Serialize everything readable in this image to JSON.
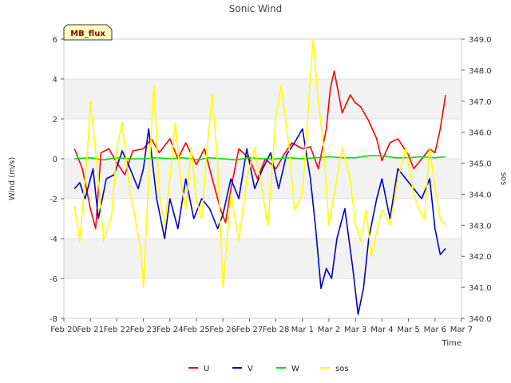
{
  "chart_data": {
    "type": "line",
    "title": "Sonic Wind",
    "badge": "MB_flux",
    "xlabel": "Time",
    "ylabel_left": "Wind (m/s)",
    "ylabel_right": "sos",
    "x_ticks": [
      "Feb 20",
      "Feb 21",
      "Feb 22",
      "Feb 23",
      "Feb 24",
      "Feb 25",
      "Feb 26",
      "Feb 27",
      "Feb 28",
      "Mar 1",
      "Mar 2",
      "Mar 3",
      "Mar 4",
      "Mar 5",
      "Mar 6",
      "Mar 7"
    ],
    "x_domain_days": [
      0,
      15
    ],
    "y_left": {
      "min": -8,
      "max": 6,
      "ticks": [
        -8,
        -6,
        -4,
        -2,
        0,
        2,
        4,
        6
      ]
    },
    "y_right": {
      "min": 340.0,
      "max": 349.0,
      "ticks": [
        "340.0",
        "341.0",
        "342.0",
        "343.0",
        "344.0",
        "345.0",
        "346.0",
        "347.0",
        "348.0",
        "349.0"
      ]
    },
    "bands": [
      [
        2,
        4
      ],
      [
        -2,
        0
      ],
      [
        -6,
        -4
      ]
    ],
    "series": [
      {
        "name": "U",
        "color": "#ff0000",
        "axis": "left",
        "x": [
          0.4,
          0.7,
          1.0,
          1.2,
          1.4,
          1.7,
          2.0,
          2.3,
          2.6,
          3.0,
          3.3,
          3.6,
          4.0,
          4.3,
          4.6,
          5.0,
          5.3,
          5.6,
          5.9,
          6.1,
          6.3,
          6.6,
          7.0,
          7.3,
          7.6,
          8.0,
          8.3,
          8.6,
          9.0,
          9.3,
          9.6,
          9.9,
          10.05,
          10.2,
          10.5,
          10.8,
          11.0,
          11.2,
          11.5,
          11.8,
          12.0,
          12.3,
          12.6,
          13.0,
          13.2,
          13.5,
          13.8,
          14.0,
          14.2,
          14.4
        ],
        "y": [
          0.5,
          -0.5,
          -2.5,
          -3.5,
          0.3,
          0.5,
          -0.2,
          -0.8,
          0.4,
          0.5,
          1.0,
          0.3,
          1.0,
          0.0,
          0.8,
          -0.3,
          0.5,
          -1.0,
          -2.5,
          -3.2,
          -1.5,
          0.5,
          0.0,
          -1.0,
          0.0,
          -0.5,
          0.2,
          0.8,
          0.5,
          0.6,
          -0.5,
          1.5,
          3.5,
          4.4,
          2.3,
          3.2,
          2.8,
          2.6,
          1.9,
          1.0,
          -0.1,
          0.8,
          1.0,
          0.2,
          -0.5,
          0.0,
          0.5,
          0.3,
          1.5,
          3.2
        ]
      },
      {
        "name": "V",
        "color": "#0000cc",
        "axis": "left",
        "x": [
          0.4,
          0.6,
          0.8,
          1.1,
          1.3,
          1.6,
          1.9,
          2.2,
          2.5,
          2.8,
          3.0,
          3.2,
          3.5,
          3.8,
          4.0,
          4.3,
          4.6,
          4.9,
          5.2,
          5.5,
          5.8,
          6.0,
          6.3,
          6.6,
          6.9,
          7.2,
          7.5,
          7.8,
          8.1,
          8.4,
          8.7,
          9.0,
          9.3,
          9.5,
          9.7,
          9.9,
          10.1,
          10.3,
          10.6,
          10.9,
          11.1,
          11.3,
          11.5,
          11.8,
          12.0,
          12.3,
          12.6,
          12.9,
          13.2,
          13.5,
          13.8,
          14.0,
          14.2,
          14.4
        ],
        "y": [
          -1.5,
          -1.2,
          -2.0,
          -0.5,
          -3.0,
          -1.0,
          -0.8,
          0.4,
          -0.5,
          -1.5,
          -0.5,
          1.5,
          -2.0,
          -4.0,
          -2.0,
          -3.5,
          -1.0,
          -3.0,
          -2.0,
          -2.5,
          -3.5,
          -2.8,
          -1.0,
          -2.0,
          0.5,
          -1.5,
          -0.5,
          0.3,
          -1.5,
          0.2,
          0.8,
          1.5,
          -1.0,
          -3.5,
          -6.5,
          -5.5,
          -6.0,
          -4.0,
          -2.5,
          -5.5,
          -7.8,
          -6.5,
          -4.0,
          -2.0,
          -1.0,
          -3.0,
          -0.5,
          -1.0,
          -1.5,
          -2.0,
          -1.0,
          -3.5,
          -4.8,
          -4.5
        ]
      },
      {
        "name": "W",
        "color": "#00dd00",
        "axis": "left",
        "x": [
          0.4,
          1.0,
          1.5,
          2.0,
          2.5,
          3.0,
          3.5,
          4.0,
          4.5,
          5.0,
          5.5,
          6.0,
          6.5,
          7.0,
          7.5,
          8.0,
          8.5,
          9.0,
          9.5,
          10.0,
          10.5,
          11.0,
          11.5,
          12.0,
          12.5,
          13.0,
          13.5,
          14.0,
          14.4
        ],
        "y": [
          0.0,
          0.05,
          -0.05,
          0.05,
          0.0,
          0.0,
          0.05,
          0.0,
          0.05,
          -0.05,
          0.05,
          0.0,
          -0.05,
          0.05,
          0.0,
          0.0,
          0.05,
          0.0,
          0.05,
          0.1,
          0.05,
          0.05,
          0.15,
          0.15,
          0.05,
          0.05,
          0.1,
          0.05,
          0.1
        ]
      },
      {
        "name": "sos",
        "color": "#ffff00",
        "axis": "right",
        "x": [
          0.4,
          0.6,
          0.9,
          1.0,
          1.3,
          1.5,
          1.8,
          2.0,
          2.2,
          2.5,
          2.7,
          2.9,
          3.0,
          3.2,
          3.4,
          3.6,
          3.8,
          4.0,
          4.2,
          4.4,
          4.6,
          4.8,
          5.0,
          5.2,
          5.4,
          5.6,
          5.8,
          6.0,
          6.3,
          6.6,
          6.9,
          7.2,
          7.5,
          7.7,
          8.0,
          8.2,
          8.5,
          8.7,
          9.0,
          9.2,
          9.4,
          9.6,
          9.8,
          10.0,
          10.2,
          10.5,
          10.8,
          11.0,
          11.2,
          11.4,
          11.6,
          11.8,
          12.0,
          12.3,
          12.6,
          12.9,
          13.2,
          13.4,
          13.6,
          13.8,
          14.0,
          14.2,
          14.4
        ],
        "y": [
          343.6,
          342.5,
          345.5,
          347.0,
          344.5,
          342.5,
          343.3,
          345.5,
          346.3,
          344.0,
          343.2,
          342.2,
          341.0,
          344.5,
          347.5,
          344.0,
          343.0,
          344.5,
          346.3,
          344.5,
          343.5,
          345.5,
          343.8,
          343.2,
          345.5,
          347.2,
          345.0,
          341.0,
          344.0,
          342.5,
          344.5,
          345.5,
          344.0,
          343.0,
          346.5,
          347.5,
          345.5,
          343.5,
          344.0,
          346.5,
          349.0,
          347.0,
          345.5,
          343.0,
          344.0,
          345.5,
          344.5,
          343.0,
          342.5,
          343.5,
          342.0,
          342.8,
          343.5,
          343.0,
          344.5,
          345.5,
          344.0,
          343.5,
          343.2,
          345.5,
          344.2,
          343.2,
          343.0
        ]
      }
    ],
    "legend": [
      {
        "label": "U",
        "color": "#ff0000"
      },
      {
        "label": "V",
        "color": "#0000cc"
      },
      {
        "label": "W",
        "color": "#00dd00"
      },
      {
        "label": "sos",
        "color": "#ffff00"
      }
    ]
  }
}
